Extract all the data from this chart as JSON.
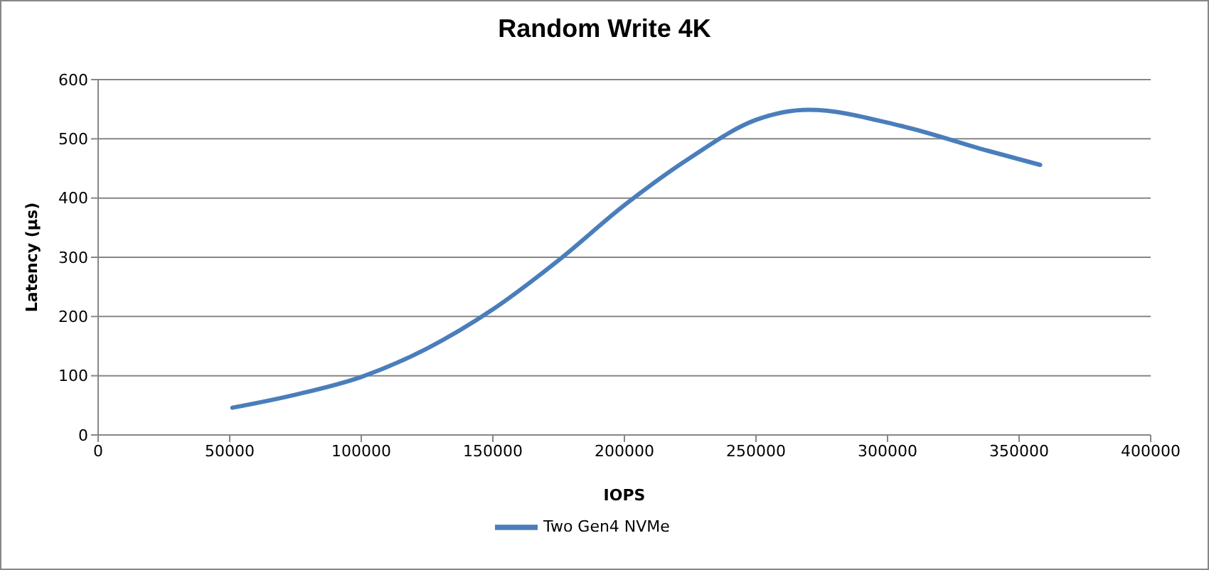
{
  "chart_data": {
    "type": "line",
    "title": "Random Write 4K",
    "xlabel": "IOPS",
    "ylabel": "Latency (µs)",
    "x": [
      51000,
      75000,
      100000,
      125000,
      150000,
      175000,
      200000,
      225000,
      250000,
      270000,
      305000,
      338000,
      358000
    ],
    "series": [
      {
        "name": "Two Gen4 NVMe",
        "color": "#4a7ebb",
        "values": [
          46,
          68,
          98,
          146,
          212,
          295,
          388,
          468,
          532,
          549,
          522,
          480,
          456
        ]
      }
    ],
    "xlim": [
      0,
      400000
    ],
    "xticks": [
      0,
      50000,
      100000,
      150000,
      200000,
      250000,
      300000,
      350000,
      400000
    ],
    "ylim": [
      0,
      600
    ],
    "yticks": [
      0,
      100,
      200,
      300,
      400,
      500,
      600
    ],
    "grid": "y",
    "legend": "bottom",
    "marker": "none",
    "line_style": "solid"
  }
}
